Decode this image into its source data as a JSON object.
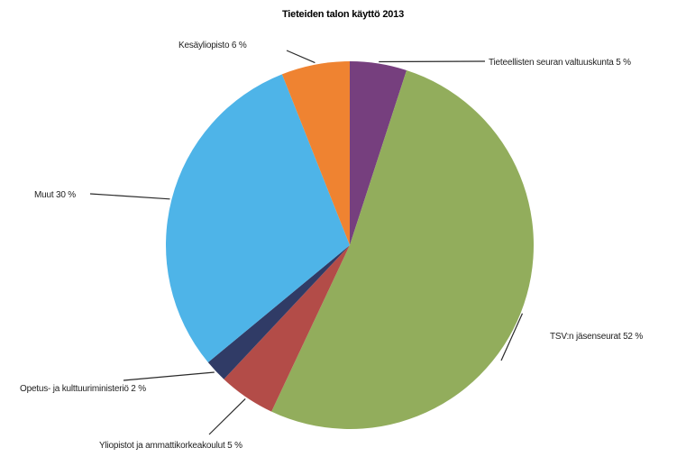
{
  "chart_data": {
    "type": "pie",
    "title": "Tieteiden talon käyttö 2013",
    "start": "top",
    "direction": "clockwise",
    "slices": [
      {
        "label": "Tieteellisten seuran valtuuskunta 5 %",
        "value": 5,
        "color": "#763f7e"
      },
      {
        "label": "TSV:n jäsenseurat 52 %",
        "value": 52,
        "color": "#92ad5c"
      },
      {
        "label": "Yliopistot ja ammattikorkeakoulut 5 %",
        "value": 5,
        "color": "#b34c48"
      },
      {
        "label": "Opetus- ja kulttuuriministeriö 2 %",
        "value": 2,
        "color": "#303b66"
      },
      {
        "label": "Muut 30 %",
        "value": 30,
        "color": "#4eb4e8"
      },
      {
        "label": "Kesäyliopisto 6 %",
        "value": 6,
        "color": "#ef8331"
      }
    ]
  }
}
